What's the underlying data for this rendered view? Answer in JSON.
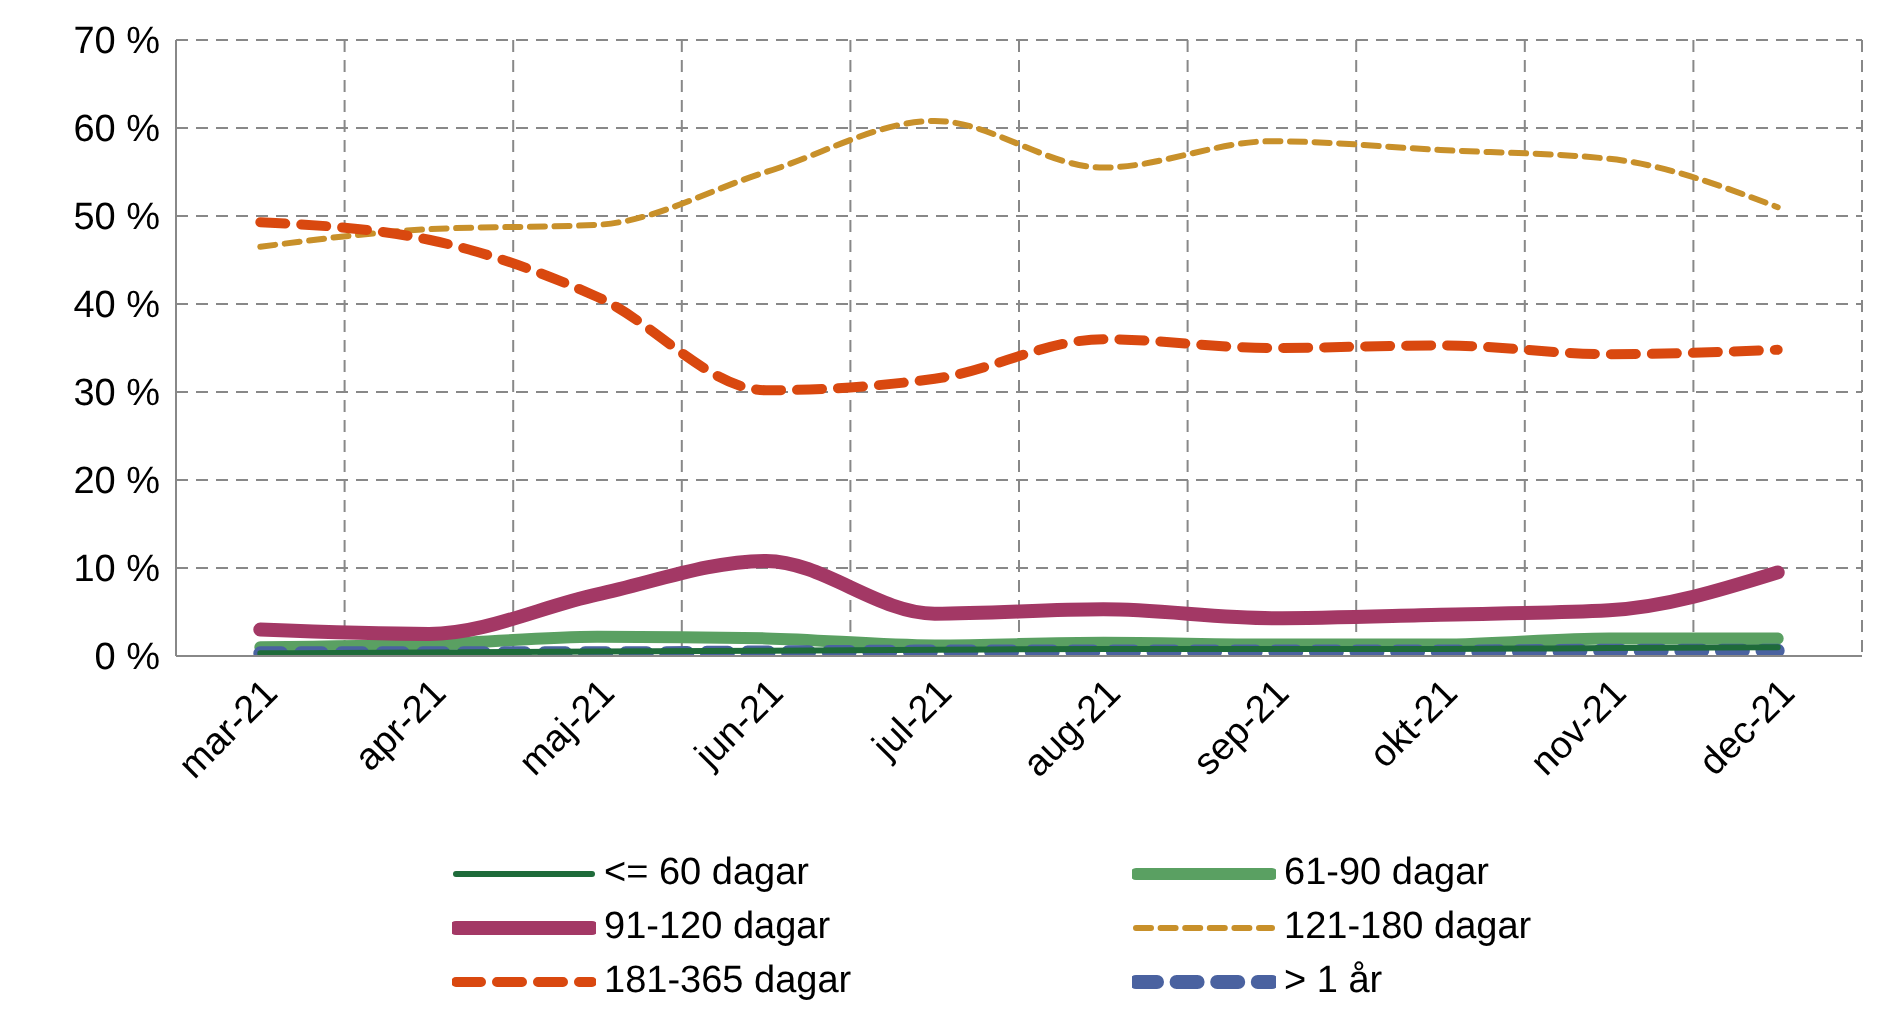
{
  "chart_data": {
    "type": "line",
    "categories": [
      "mar-21",
      "apr-21",
      "maj-21",
      "jun-21",
      "jul-21",
      "aug-21",
      "sep-21",
      "okt-21",
      "nov-21",
      "dec-21"
    ],
    "series": [
      {
        "name": "<= 60 dagar",
        "color": "#1e6b3a",
        "line_style": "solid",
        "values": [
          0.3,
          0.4,
          0.5,
          0.6,
          0.7,
          0.8,
          0.8,
          0.8,
          0.9,
          1
        ]
      },
      {
        "name": "61-90 dagar",
        "color": "#5aa062",
        "line_style": "solid",
        "values": [
          1,
          1.3,
          2.2,
          2,
          1.2,
          1.5,
          1.3,
          1.3,
          2,
          2
        ]
      },
      {
        "name": "91-120 dagar",
        "color": "#a33865",
        "line_style": "solid",
        "values": [
          3,
          2.5,
          7,
          10.8,
          4.8,
          5.3,
          4.3,
          4.7,
          5.2,
          9.5
        ]
      },
      {
        "name": "121-180 dagar",
        "color": "#c8902a",
        "line_style": "dashed",
        "values": [
          46.5,
          48.5,
          49,
          55,
          60.8,
          55.5,
          58.5,
          57.5,
          56.5,
          51
        ]
      },
      {
        "name": "181-365 dagar",
        "color": "#d9480f",
        "line_style": "dashed",
        "values": [
          49.3,
          47.3,
          40.8,
          30.2,
          31.5,
          36,
          35,
          35.3,
          34.3,
          34.8
        ]
      },
      {
        "name": "> 1 år",
        "color": "#4a62a0",
        "line_style": "dashed",
        "values": [
          0.3,
          0.3,
          0.3,
          0.4,
          0.5,
          0.5,
          0.5,
          0.5,
          0.6,
          0.6
        ]
      }
    ],
    "ylim": [
      0,
      70
    ],
    "yticks": [
      {
        "value": 0,
        "label": "0 %"
      },
      {
        "value": 10,
        "label": "10 %"
      },
      {
        "value": 20,
        "label": "20 %"
      },
      {
        "value": 30,
        "label": "30 %"
      },
      {
        "value": 40,
        "label": "40 %"
      },
      {
        "value": 50,
        "label": "50 %"
      },
      {
        "value": 60,
        "label": "60 %"
      },
      {
        "value": 70,
        "label": "70 %"
      }
    ],
    "grid": true,
    "legend": "bottom",
    "marker": "none"
  }
}
